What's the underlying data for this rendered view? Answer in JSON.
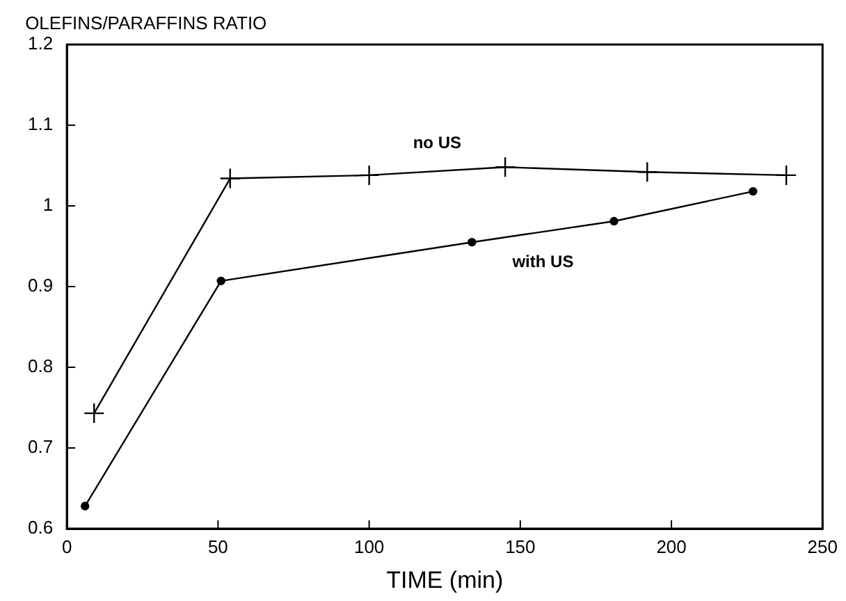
{
  "chart_data": {
    "type": "line",
    "ylabel": "OLEFINS/PARAFFINS RATIO",
    "xlabel": "TIME (min)",
    "xlim": [
      0,
      250
    ],
    "xticks": [
      0,
      50,
      100,
      150,
      200,
      250
    ],
    "ylim": [
      0.6,
      1.2
    ],
    "yticks": [
      0.6,
      0.7,
      0.8,
      0.9,
      1,
      1.1,
      1.2
    ],
    "grid": false,
    "legend": false,
    "series": [
      {
        "name": "no US",
        "color": "#000000",
        "marker": "cross",
        "x": [
          9,
          54,
          100,
          145,
          192,
          238
        ],
        "values": [
          0.743,
          1.034,
          1.038,
          1.048,
          1.042,
          1.038
        ]
      },
      {
        "name": "with US",
        "color": "#000000",
        "marker": "circle",
        "x": [
          6,
          51,
          134,
          181,
          227
        ],
        "values": [
          0.628,
          0.907,
          0.955,
          0.981,
          1.018
        ]
      }
    ]
  }
}
